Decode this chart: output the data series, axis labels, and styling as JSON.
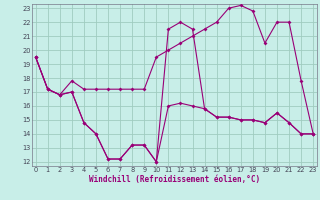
{
  "xlabel": "Windchill (Refroidissement éolien,°C)",
  "xlim": [
    0,
    23
  ],
  "ylim": [
    12,
    23
  ],
  "xticks": [
    0,
    1,
    2,
    3,
    4,
    5,
    6,
    7,
    8,
    9,
    10,
    11,
    12,
    13,
    14,
    15,
    16,
    17,
    18,
    19,
    20,
    21,
    22,
    23
  ],
  "yticks": [
    12,
    13,
    14,
    15,
    16,
    17,
    18,
    19,
    20,
    21,
    22,
    23
  ],
  "bg_color": "#c8eee8",
  "grid_color": "#a0ccc0",
  "line_color": "#990077",
  "line_a_x": [
    0,
    1,
    2,
    3,
    4,
    5,
    6,
    7,
    8,
    9,
    10,
    11,
    12,
    13,
    14,
    15,
    16,
    17,
    18,
    19,
    20,
    21,
    22,
    23
  ],
  "line_a_y": [
    19.5,
    17.2,
    16.8,
    17.8,
    17.2,
    17.2,
    17.2,
    17.2,
    17.2,
    17.2,
    19.5,
    20.0,
    20.5,
    21.0,
    21.5,
    22.0,
    23.0,
    23.2,
    22.8,
    20.5,
    22.0,
    22.0,
    17.8,
    14.0
  ],
  "line_b_x": [
    0,
    1,
    2,
    3,
    4,
    5,
    6,
    7,
    8,
    9,
    10,
    11,
    12,
    13,
    14,
    15,
    16,
    17,
    18,
    19,
    20,
    21,
    22,
    23
  ],
  "line_b_y": [
    19.5,
    17.2,
    16.8,
    17.0,
    14.8,
    14.0,
    12.2,
    12.2,
    13.2,
    13.2,
    12.0,
    21.5,
    22.0,
    21.5,
    15.8,
    15.2,
    15.2,
    15.0,
    15.0,
    14.8,
    15.5,
    14.8,
    14.0,
    14.0
  ],
  "line_c_x": [
    0,
    1,
    2,
    3,
    4,
    5,
    6,
    7,
    8,
    9,
    10,
    11,
    12,
    13,
    14,
    15,
    16,
    17,
    18,
    19,
    20,
    21,
    22,
    23
  ],
  "line_c_y": [
    19.5,
    17.2,
    16.8,
    17.0,
    14.8,
    14.0,
    12.2,
    12.2,
    13.2,
    13.2,
    12.0,
    16.0,
    16.2,
    16.0,
    15.8,
    15.2,
    15.2,
    15.0,
    15.0,
    14.8,
    15.5,
    14.8,
    14.0,
    14.0
  ]
}
